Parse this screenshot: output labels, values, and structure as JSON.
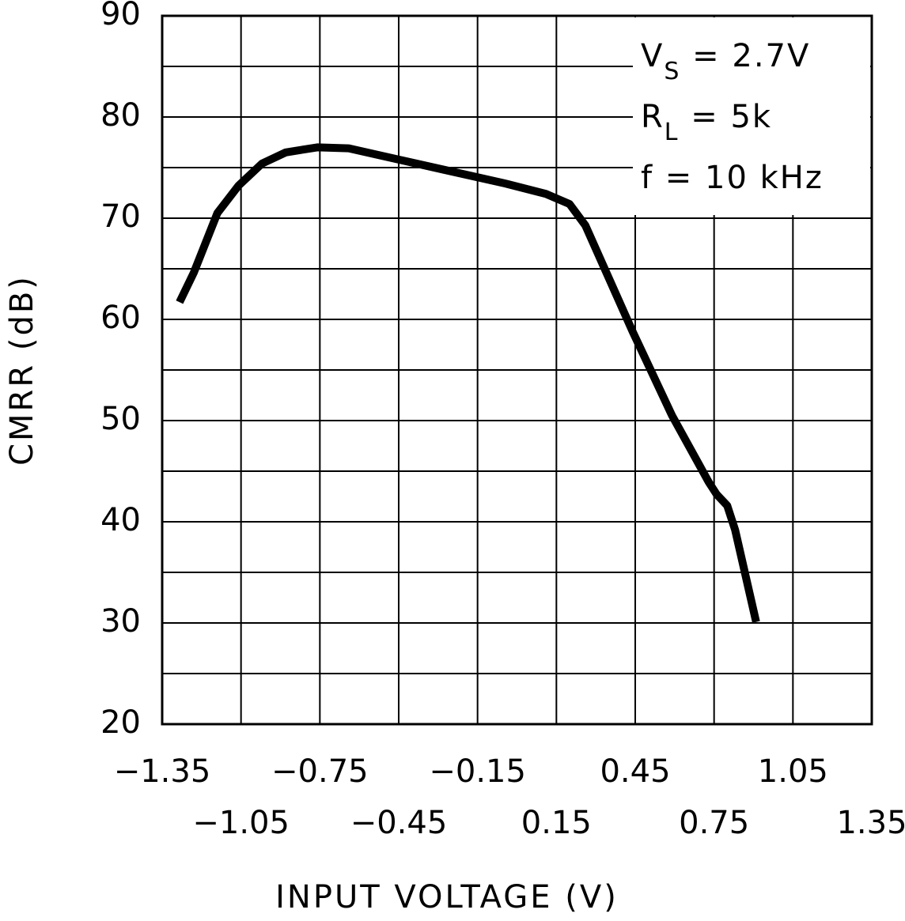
{
  "chart_data": {
    "type": "line",
    "x_label": "INPUT VOLTAGE (V)",
    "y_label": "CMRR (dB)",
    "annotations": [
      {
        "main": "V",
        "sub": "S",
        "rest": " =  2.7V"
      },
      {
        "main": "R",
        "sub": "L",
        "rest": "  =  5k"
      },
      {
        "main": "f  =  10 kHz"
      }
    ],
    "x": [
      -1.284,
      -1.23,
      -1.14,
      -1.06,
      -0.97,
      -0.88,
      -0.76,
      -0.64,
      -0.52,
      -0.28,
      -0.04,
      0.11,
      0.2,
      0.26,
      0.44,
      0.59,
      0.73,
      0.76,
      0.8,
      0.83,
      0.91
    ],
    "values": [
      61.7,
      64.6,
      70.5,
      73.2,
      75.4,
      76.5,
      77.0,
      76.9,
      76.2,
      74.8,
      73.4,
      72.4,
      71.4,
      69.3,
      58.8,
      50.5,
      43.9,
      42.7,
      41.6,
      39.2,
      30.1
    ],
    "color": "#000000",
    "xlim": [
      -1.35,
      1.35
    ],
    "xticks": [
      {
        "value": -1.35,
        "label": "−1.35"
      },
      {
        "value": -1.05,
        "label": "−1.05"
      },
      {
        "value": -0.75,
        "label": "−0.75"
      },
      {
        "value": -0.45,
        "label": "−0.45"
      },
      {
        "value": -0.15,
        "label": "−0.15"
      },
      0.15,
      0.45,
      0.75,
      1.05,
      1.35
    ],
    "ylim": [
      20,
      90
    ],
    "yticks": [
      20,
      30,
      40,
      50,
      60,
      70,
      80,
      90
    ],
    "y_minor_ticks": [
      25,
      35,
      45,
      55,
      65,
      75,
      85
    ],
    "grid": true
  }
}
